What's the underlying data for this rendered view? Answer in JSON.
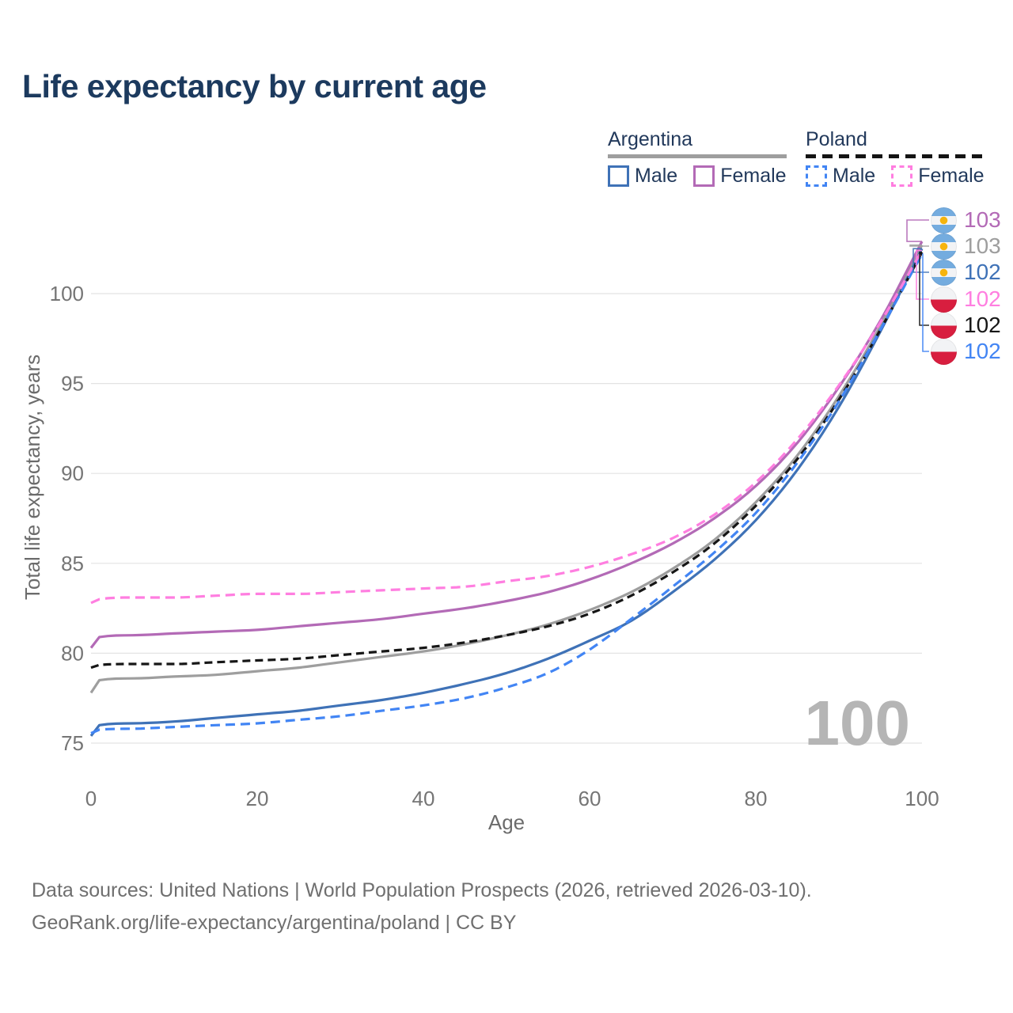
{
  "chart_data": {
    "type": "line",
    "title": "Life expectancy by current age",
    "xlabel": "Age",
    "ylabel": "Total life expectancy, years",
    "x_ticks": [
      0,
      20,
      40,
      60,
      80,
      100
    ],
    "y_ticks": [
      75,
      80,
      85,
      90,
      95,
      100
    ],
    "xlim": [
      0,
      100
    ],
    "ylim": [
      73,
      104.5
    ],
    "grid": "horizontal",
    "legend_position": "top-right",
    "frame_watermark": "100",
    "ages": [
      0,
      1,
      5,
      10,
      15,
      20,
      25,
      30,
      35,
      40,
      45,
      50,
      55,
      60,
      65,
      70,
      75,
      80,
      85,
      90,
      95,
      100
    ],
    "series": [
      {
        "id": "argentina-total",
        "country": "Argentina",
        "sex": "Both sexes",
        "line": "solid",
        "color": "#9e9e9e",
        "values": [
          77.8,
          78.5,
          78.6,
          78.7,
          78.8,
          79.0,
          79.2,
          79.5,
          79.8,
          80.1,
          80.5,
          81.0,
          81.6,
          82.4,
          83.4,
          84.7,
          86.3,
          88.4,
          91.0,
          94.3,
          98.2,
          102.7
        ],
        "end_label": "103"
      },
      {
        "id": "argentina-male",
        "country": "Argentina",
        "sex": "Male",
        "line": "solid",
        "color": "#3f72b7",
        "values": [
          75.4,
          76.0,
          76.1,
          76.2,
          76.4,
          76.6,
          76.8,
          77.1,
          77.4,
          77.8,
          78.3,
          78.9,
          79.7,
          80.7,
          81.8,
          83.4,
          85.2,
          87.4,
          90.2,
          93.7,
          97.9,
          102.5
        ],
        "end_label": "102"
      },
      {
        "id": "argentina-female",
        "country": "Argentina",
        "sex": "Female",
        "line": "solid",
        "color": "#b36ab6",
        "values": [
          80.3,
          80.9,
          81.0,
          81.1,
          81.2,
          81.3,
          81.5,
          81.7,
          81.9,
          82.2,
          82.5,
          82.9,
          83.4,
          84.1,
          85.0,
          86.1,
          87.5,
          89.3,
          91.7,
          94.8,
          98.5,
          102.9
        ],
        "end_label": "103"
      },
      {
        "id": "poland-total",
        "country": "Poland",
        "sex": "Both sexes",
        "line": "dashed",
        "color": "#161616",
        "values": [
          79.2,
          79.35,
          79.4,
          79.4,
          79.5,
          79.6,
          79.7,
          79.9,
          80.1,
          80.3,
          80.6,
          81.0,
          81.5,
          82.2,
          83.2,
          84.5,
          86.1,
          88.2,
          90.8,
          94.1,
          98.0,
          102.3
        ],
        "end_label": "102"
      },
      {
        "id": "poland-male",
        "country": "Poland",
        "sex": "Male",
        "line": "dashed",
        "color": "#4285f4",
        "values": [
          75.55,
          75.75,
          75.8,
          75.9,
          76.0,
          76.1,
          76.3,
          76.5,
          76.8,
          77.1,
          77.5,
          78.1,
          78.9,
          80.2,
          81.9,
          83.7,
          85.6,
          87.8,
          90.6,
          94.0,
          98.0,
          102.2
        ],
        "end_label": "102"
      },
      {
        "id": "poland-female",
        "country": "Poland",
        "sex": "Female",
        "line": "dashed",
        "color": "#ff7ee0",
        "values": [
          82.8,
          83.0,
          83.1,
          83.1,
          83.2,
          83.3,
          83.3,
          83.4,
          83.5,
          83.6,
          83.7,
          84.0,
          84.3,
          84.8,
          85.5,
          86.4,
          87.7,
          89.5,
          91.9,
          94.9,
          98.4,
          102.4
        ],
        "end_label": "102"
      }
    ],
    "end_label_order": [
      "argentina-female",
      "argentina-total",
      "argentina-male",
      "poland-female",
      "poland-total",
      "poland-male"
    ]
  },
  "legend": {
    "groups": [
      {
        "id": "argentina",
        "label": "Argentina",
        "style": "solid",
        "items": [
          {
            "series": "argentina-male",
            "label": "Male"
          },
          {
            "series": "argentina-female",
            "label": "Female"
          }
        ]
      },
      {
        "id": "poland",
        "label": "Poland",
        "style": "dashed",
        "items": [
          {
            "series": "poland-male",
            "label": "Male"
          },
          {
            "series": "poland-female",
            "label": "Female"
          }
        ]
      }
    ]
  },
  "footer": {
    "line1": "Data sources: United Nations | World Population Prospects (2026, retrieved 2026-03-10).",
    "line2": "GeoRank.org/life-expectancy/argentina/poland | CC BY"
  },
  "colors": {
    "title": "#1c3a5e",
    "legend_text": "#22395b",
    "tick_label": "#757575",
    "axis_title": "#6b6b6b",
    "gridline": "#e3e3e3",
    "watermark": "#b5b5b5",
    "flag_argentina_blue": "#74acdf",
    "flag_argentina_sun": "#f6b40e",
    "flag_poland_red": "#d81e3f"
  }
}
